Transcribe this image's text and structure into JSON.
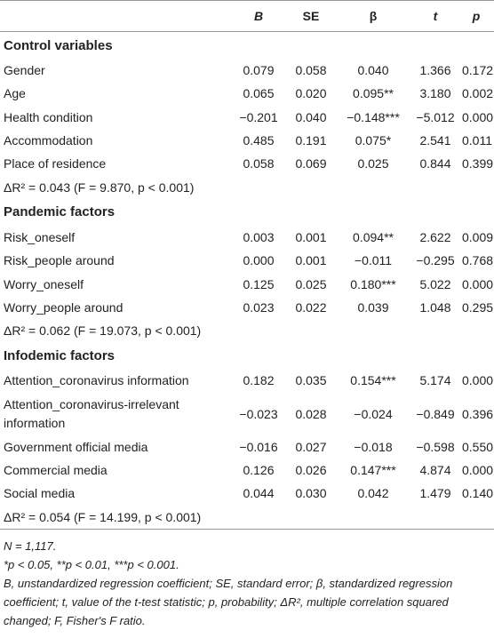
{
  "table": {
    "columns": [
      "B",
      "SE",
      "β",
      "t",
      "p"
    ],
    "sections": [
      {
        "title": "Control variables",
        "rows": [
          {
            "label": "Gender",
            "cells": [
              "0.079",
              "0.058",
              "0.040",
              "1.366",
              "0.172"
            ]
          },
          {
            "label": "Age",
            "cells": [
              "0.065",
              "0.020",
              "0.095**",
              "3.180",
              "0.002"
            ]
          },
          {
            "label": "Health condition",
            "cells": [
              "−0.201",
              "0.040",
              "−0.148***",
              "−5.012",
              "0.000"
            ]
          },
          {
            "label": "Accommodation",
            "cells": [
              "0.485",
              "0.191",
              "0.075*",
              "2.541",
              "0.011"
            ]
          },
          {
            "label": "Place of residence",
            "cells": [
              "0.058",
              "0.069",
              "0.025",
              "0.844",
              "0.399"
            ]
          }
        ],
        "summary": "ΔR² = 0.043 (F = 9.870, p < 0.001)"
      },
      {
        "title": "Pandemic factors",
        "rows": [
          {
            "label": "Risk_oneself",
            "cells": [
              "0.003",
              "0.001",
              "0.094**",
              "2.622",
              "0.009"
            ]
          },
          {
            "label": "Risk_people around",
            "cells": [
              "0.000",
              "0.001",
              "−0.011",
              "−0.295",
              "0.768"
            ]
          },
          {
            "label": "Worry_oneself",
            "cells": [
              "0.125",
              "0.025",
              "0.180***",
              "5.022",
              "0.000"
            ]
          },
          {
            "label": "Worry_people around",
            "cells": [
              "0.023",
              "0.022",
              "0.039",
              "1.048",
              "0.295"
            ]
          }
        ],
        "summary": "ΔR² = 0.062 (F = 19.073, p < 0.001)"
      },
      {
        "title": "Infodemic factors",
        "rows": [
          {
            "label": "Attention_coronavirus information",
            "cells": [
              "0.182",
              "0.035",
              "0.154***",
              "5.174",
              "0.000"
            ]
          },
          {
            "label": "Attention_coronavirus-irrelevant information",
            "cells": [
              "−0.023",
              "0.028",
              "−0.024",
              "−0.849",
              "0.396"
            ]
          },
          {
            "label": "Government official media",
            "cells": [
              "−0.016",
              "0.027",
              "−0.018",
              "−0.598",
              "0.550"
            ]
          },
          {
            "label": "Commercial media",
            "cells": [
              "0.126",
              "0.026",
              "0.147***",
              "4.874",
              "0.000"
            ]
          },
          {
            "label": "Social media",
            "cells": [
              "0.044",
              "0.030",
              "0.042",
              "1.479",
              "0.140"
            ]
          }
        ],
        "summary": "ΔR² = 0.054 (F = 14.199, p < 0.001)"
      }
    ],
    "notes": [
      "N = 1,117.",
      "*p < 0.05, **p < 0.01, ***p < 0.001.",
      "B, unstandardized regression coefficient; SE, standard error; β, standardized regression coefficient; t, value of the t-test statistic; p, probability; ΔR², multiple correlation squared changed; F, Fisher's F ratio."
    ]
  }
}
